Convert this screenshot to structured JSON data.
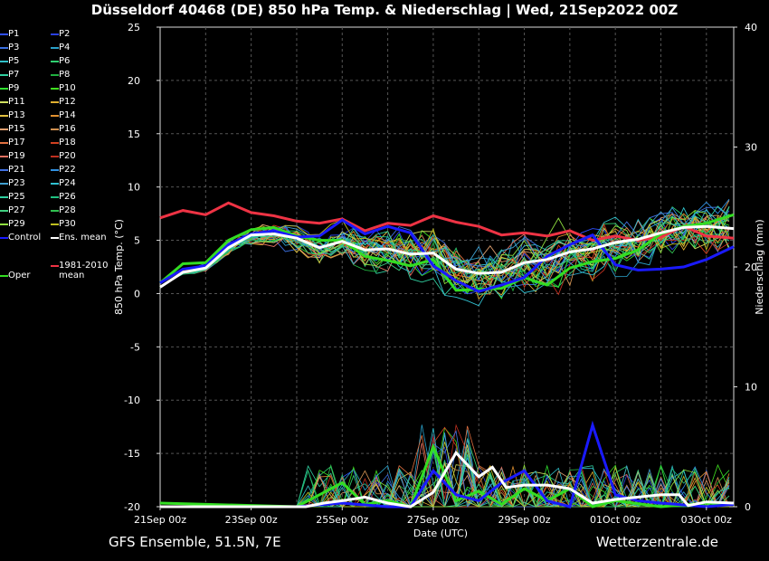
{
  "title": "Düsseldorf 40468 (DE)  850 hPa Temp. & Niederschlag | Wed, 21Sep2022 00Z",
  "footer_left": "GFS Ensemble, 51.5N, 7E",
  "footer_right": "Wetterzentrale.de",
  "colors": {
    "background": "#000000",
    "control": "#1a1aff",
    "ens_mean": "#ffffff",
    "oper": "#33dd22",
    "climate": "#ee3344",
    "grid": "#555555"
  },
  "legend": [
    {
      "label": "P1",
      "color": "#3050ff"
    },
    {
      "label": "P2",
      "color": "#2a40e0"
    },
    {
      "label": "P3",
      "color": "#3a6fe0"
    },
    {
      "label": "P4",
      "color": "#2aa0c8"
    },
    {
      "label": "P5",
      "color": "#30c0c8"
    },
    {
      "label": "P6",
      "color": "#30d070"
    },
    {
      "label": "P7",
      "color": "#30d0a0"
    },
    {
      "label": "P8",
      "color": "#20b040"
    },
    {
      "label": "P9",
      "color": "#30e030"
    },
    {
      "label": "P10",
      "color": "#40e020"
    },
    {
      "label": "P11",
      "color": "#d0e060"
    },
    {
      "label": "P12",
      "color": "#e0b030"
    },
    {
      "label": "P13",
      "color": "#e0c040"
    },
    {
      "label": "P14",
      "color": "#e09030"
    },
    {
      "label": "P15",
      "color": "#e0a070"
    },
    {
      "label": "P16",
      "color": "#d09050"
    },
    {
      "label": "P17",
      "color": "#e07040"
    },
    {
      "label": "P18",
      "color": "#d04020"
    },
    {
      "label": "P19",
      "color": "#e07060"
    },
    {
      "label": "P20",
      "color": "#c03020"
    },
    {
      "label": "P21",
      "color": "#4070e0"
    },
    {
      "label": "P22",
      "color": "#3090e0"
    },
    {
      "label": "P23",
      "color": "#40a0d0"
    },
    {
      "label": "P24",
      "color": "#30c0d0"
    },
    {
      "label": "P25",
      "color": "#30d0a0"
    },
    {
      "label": "P26",
      "color": "#20c080"
    },
    {
      "label": "P27",
      "color": "#40d080"
    },
    {
      "label": "P28",
      "color": "#30c050"
    },
    {
      "label": "P29",
      "color": "#90e040"
    },
    {
      "label": "P30",
      "color": "#c0c020"
    },
    {
      "label": "Control",
      "color": "#1a1aff"
    },
    {
      "label": "Ens. mean",
      "color": "#ffffff"
    },
    {
      "label": "Oper",
      "color": "#33dd22"
    },
    {
      "label": "1981-2010 mean",
      "color": "#ee3344"
    }
  ],
  "chart_data": {
    "type": "line",
    "title": "Düsseldorf 40468 (DE)  850 hPa Temp. & Niederschlag | Wed, 21Sep2022 00Z",
    "xlabel": "Date (UTC)",
    "ylabel": "850 hPa Temp. (°C)",
    "y2label": "Niederschlag (mm)",
    "ylim": [
      -20,
      25
    ],
    "y2lim": [
      0,
      40
    ],
    "yticks": [
      -20,
      -15,
      -10,
      -5,
      0,
      5,
      10,
      15,
      20,
      25
    ],
    "y2ticks": [
      0,
      10,
      20,
      30,
      40
    ],
    "xlim_days": [
      0,
      12.6
    ],
    "xticks": [
      {
        "day": 0,
        "label": "21Sep 00z"
      },
      {
        "day": 2,
        "label": "23Sep 00z"
      },
      {
        "day": 4,
        "label": "25Sep 00z"
      },
      {
        "day": 6,
        "label": "27Sep 00z"
      },
      {
        "day": 8,
        "label": "29Sep 00z"
      },
      {
        "day": 10,
        "label": "01Oct 00z"
      },
      {
        "day": 12,
        "label": "03Oct 00z"
      }
    ],
    "grid": true,
    "temperature_series": [
      {
        "name": "Ens. mean",
        "x": [
          0,
          0.5,
          1,
          1.5,
          2,
          2.5,
          3,
          3.5,
          4,
          4.5,
          5,
          5.5,
          6,
          6.5,
          7,
          7.5,
          8,
          8.5,
          9,
          9.5,
          10,
          10.5,
          11,
          11.5,
          12,
          12.6
        ],
        "values": [
          0.6,
          2,
          2.4,
          4.3,
          5.5,
          5.6,
          5.2,
          4.3,
          4.9,
          4.1,
          4.2,
          3.7,
          3.8,
          2.3,
          1.9,
          2.0,
          2.9,
          3.2,
          3.9,
          4.2,
          4.8,
          5.1,
          5.7,
          6.2,
          6.3,
          6.1
        ]
      },
      {
        "name": "Control",
        "x": [
          0,
          0.5,
          1,
          1.5,
          2,
          2.5,
          3,
          3.5,
          4,
          4.5,
          5,
          5.5,
          6,
          6.5,
          7,
          7.5,
          8,
          8.5,
          9,
          9.5,
          10,
          10.5,
          11,
          11.5,
          12,
          12.6
        ],
        "values": [
          1,
          2.3,
          2.6,
          4.6,
          5.6,
          5.9,
          5.3,
          5.4,
          6.9,
          5.6,
          6.3,
          5.7,
          2.6,
          1.2,
          0.2,
          0.8,
          1.5,
          3.5,
          4.6,
          5.5,
          2.7,
          2.2,
          2.3,
          2.5,
          3.2,
          4.4
        ]
      },
      {
        "name": "Oper",
        "x": [
          0,
          0.5,
          1,
          1.5,
          2,
          2.5,
          3,
          3.5,
          4,
          4.5,
          5,
          5.5,
          6,
          6.5,
          7,
          7.5,
          8,
          8.5,
          9,
          9.5,
          10,
          10.5,
          11,
          11.5,
          12,
          12.6
        ],
        "values": [
          1,
          2.8,
          2.9,
          5,
          6,
          6.2,
          5.4,
          5.0,
          5.0,
          3.5,
          3.1,
          2.6,
          3.2,
          0.3,
          0.4,
          0.5,
          1.5,
          0.8,
          2.4,
          3.0,
          3.3,
          4.1,
          5.6,
          6.3,
          6.6,
          7.4
        ]
      },
      {
        "name": "1981-2010 mean",
        "x": [
          0,
          0.5,
          1,
          1.5,
          2,
          2.5,
          3,
          3.5,
          4,
          4.5,
          5,
          5.5,
          6,
          6.5,
          7,
          7.5,
          8,
          8.5,
          9,
          9.5,
          10,
          10.5,
          11,
          11.5,
          12,
          12.6
        ],
        "values": [
          7.1,
          7.8,
          7.4,
          8.5,
          7.6,
          7.3,
          6.8,
          6.6,
          7.0,
          5.9,
          6.6,
          6.4,
          7.3,
          6.7,
          6.3,
          5.5,
          5.7,
          5.4,
          5.9,
          5.0,
          5.4,
          5.0,
          5.3,
          6.3,
          5.4,
          5.2
        ]
      }
    ],
    "precipitation_series": [
      {
        "name": "Ens. mean",
        "x": [
          0,
          3.2,
          3.6,
          4,
          4.5,
          5,
          5.5,
          6,
          6.5,
          7,
          7.3,
          7.6,
          8,
          8.5,
          9,
          9.5,
          10,
          10.5,
          11,
          11.4,
          11.6,
          12,
          12.6
        ],
        "values": [
          0,
          0,
          0.3,
          0.5,
          0.8,
          0.3,
          0,
          1.2,
          4.5,
          2.5,
          3.3,
          1.6,
          1.8,
          1.8,
          1.5,
          0.3,
          0.6,
          0.8,
          1.0,
          1.0,
          0.1,
          0.4,
          0.3
        ]
      },
      {
        "name": "Control",
        "x": [
          0,
          3,
          4,
          5,
          5.5,
          6,
          6.5,
          7,
          7.5,
          8,
          8.5,
          9,
          9.5,
          10,
          10.5,
          11,
          12,
          12.6
        ],
        "values": [
          0,
          0,
          0.3,
          0,
          0,
          3,
          1,
          0.5,
          2,
          3,
          0.5,
          0,
          6.8,
          1,
          0.5,
          0.3,
          0,
          0.2
        ]
      },
      {
        "name": "Oper",
        "x": [
          0,
          3,
          3.5,
          4,
          4.5,
          5,
          5.5,
          6,
          6.5,
          7,
          7.5,
          8,
          8.5,
          9,
          9.5,
          10,
          11,
          12,
          12.6
        ],
        "values": [
          0.3,
          0,
          1,
          2,
          0.2,
          0.5,
          0,
          5,
          0.5,
          1.3,
          0.2,
          1.5,
          0.5,
          1.5,
          0,
          0.5,
          0,
          0.3,
          0.2
        ]
      }
    ]
  }
}
